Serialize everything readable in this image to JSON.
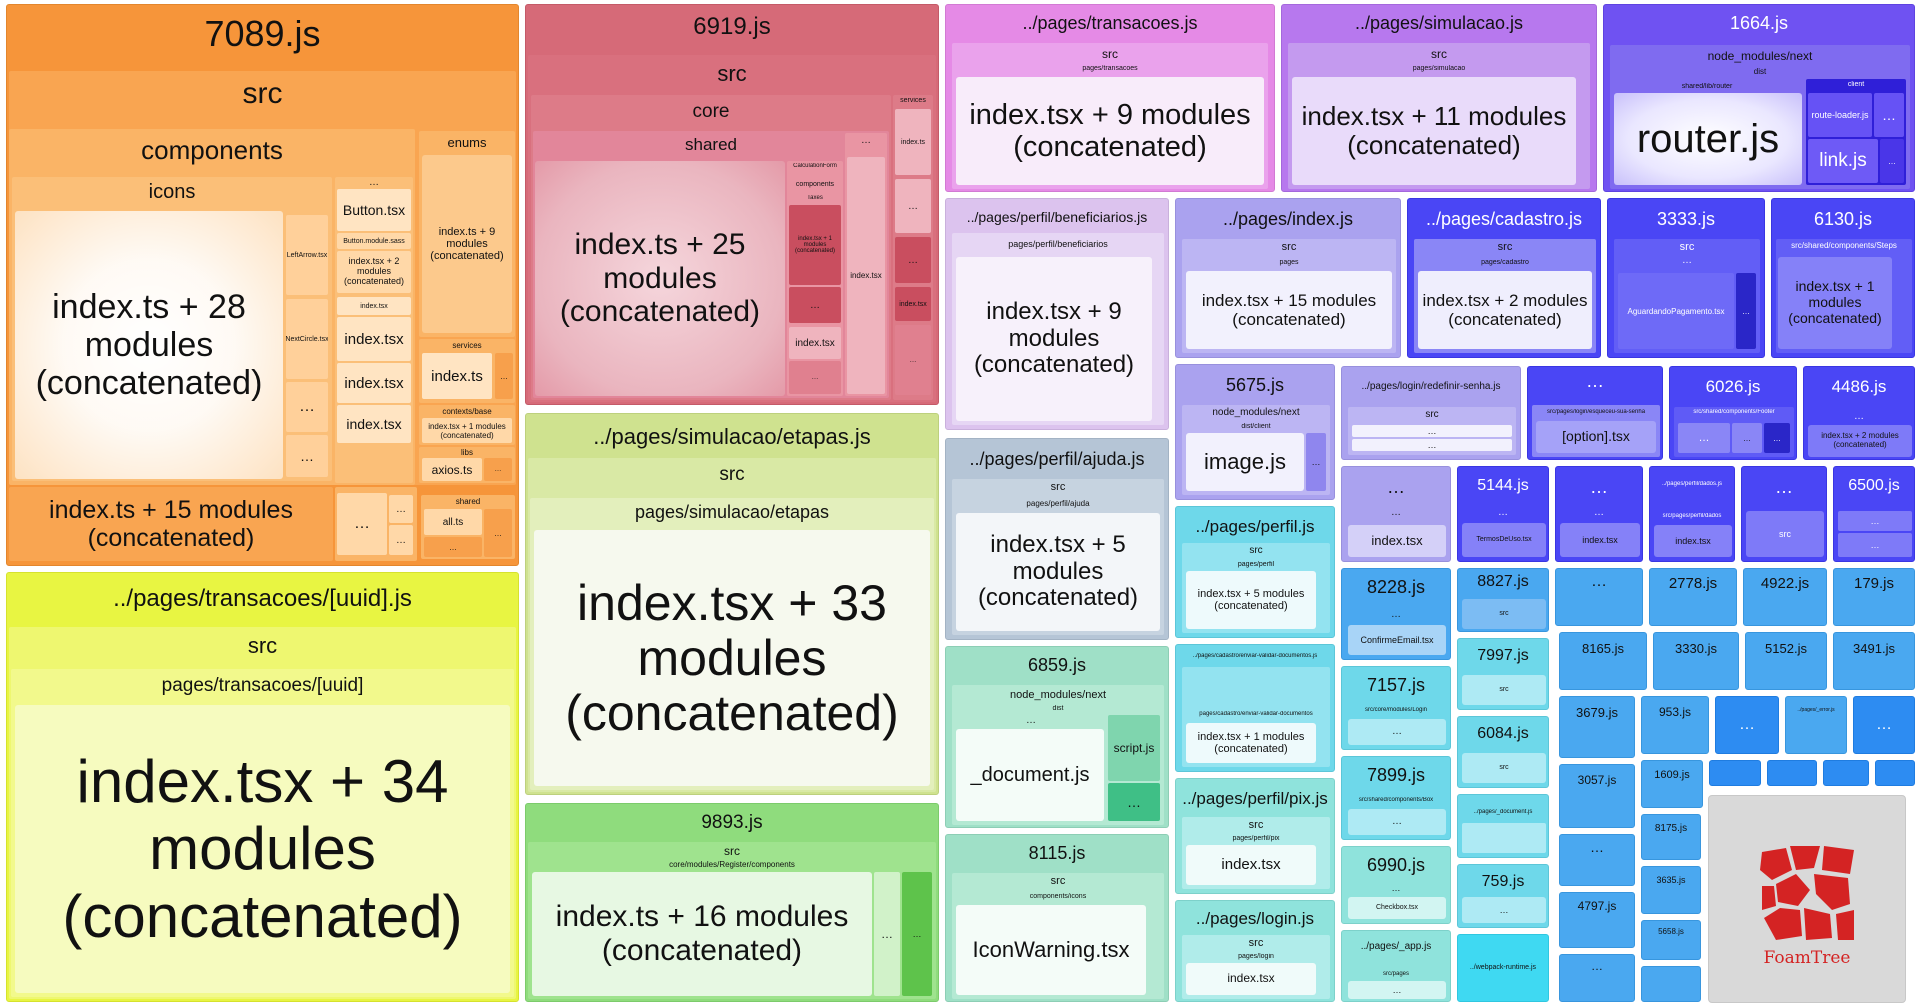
{
  "controls": {
    "sidebar_toggle_glyph": "›"
  },
  "colors": {
    "orange": "#f6953a",
    "yellow": "#e8f542",
    "rose": "#d66a78",
    "olive": "#cfe28f",
    "green": "#8fdc7d",
    "violet": "#b778ee",
    "blue": "#4a46f5",
    "cyan": "#6ed8ea",
    "azure": "#2d8cf2",
    "foamtree_red": "#d42323"
  },
  "chunks": {
    "c7089": {
      "title": "7089.js",
      "src": "src",
      "components": "components",
      "icons": "icons",
      "main": "index.ts + 28 modules (concatenated)",
      "leftarrow": "LeftArrow.tsx",
      "nextcircle": "NextCircle.tsx",
      "dots": "…",
      "button_tsx": "Button.tsx",
      "button_sass": "Button.module.sass",
      "concat2": "index.tsx + 2 modules (concatenated)",
      "index_tsx": "index.tsx",
      "enums": "enums",
      "enums_main": "index.ts + 9 modules (concatenated)",
      "services": "services",
      "index_ts": "index.ts",
      "contexts": "contexts/base",
      "concat1": "index.tsx + 1 modules (concatenated)",
      "libs": "libs",
      "axios": "axios.ts",
      "shared": "shared",
      "all": "all.ts",
      "bottom": "index.ts + 15 modules (concatenated)"
    },
    "c6919": {
      "title": "6919.js",
      "src": "src",
      "core": "core",
      "shared": "shared",
      "main": "index.ts + 25 modules (concatenated)",
      "calc": "CalculationForm",
      "components": "components",
      "taxes": "Taxes",
      "concat1": "index.tsx + 1 modules (concatenated)",
      "index_tsx": "index.tsx",
      "services": "services",
      "index_ts": "index.ts",
      "dots": "…"
    },
    "transUuid": {
      "title": "../pages/transacoes/[uuid].js",
      "src": "src",
      "path": "pages/transacoes/[uuid]",
      "main": "index.tsx + 34 modules (concatenated)"
    },
    "etapas": {
      "title": "../pages/simulacao/etapas.js",
      "src": "src",
      "path": "pages/simulacao/etapas",
      "main": "index.tsx + 33 modules (concatenated)"
    },
    "c9893": {
      "title": "9893.js",
      "src": "src",
      "path": "core/modules/Register/components",
      "main": "index.ts + 16 modules (concatenated)",
      "dots": "…"
    },
    "trans": {
      "title": "../pages/transacoes.js",
      "src": "src",
      "path": "pages/transacoes",
      "main": "index.tsx + 9 modules (concatenated)"
    },
    "simul": {
      "title": "../pages/simulacao.js",
      "src": "src",
      "path": "pages/simulacao",
      "main": "index.tsx + 11 modules (concatenated)"
    },
    "c1664": {
      "title": "1664.js",
      "nm": "node_modules/next",
      "dist": "dist",
      "shared": "shared/lib/router",
      "client": "client",
      "router": "router.js",
      "route_loader": "route-loader.js",
      "link": "link.js",
      "dots": "…"
    },
    "benef": {
      "title": "../pages/perfil/beneficiarios.js",
      "path": "pages/perfil/beneficiarios",
      "main": "index.tsx + 9 modules (concatenated)"
    },
    "pindex": {
      "title": "../pages/index.js",
      "src": "src",
      "path": "pages",
      "main": "index.tsx + 15 modules (concatenated)"
    },
    "cadastro": {
      "title": "../pages/cadastro.js",
      "src": "src",
      "path": "pages/cadastro",
      "main": "index.tsx + 2 modules (concatenated)"
    },
    "c3333": {
      "title": "3333.js",
      "src": "src",
      "dots": "…",
      "aguardando": "AguardandoPagamento.tsx"
    },
    "c6130": {
      "title": "6130.js",
      "path": "src/shared/components/Steps",
      "main": "index.tsx + 1 modules (concatenated)"
    },
    "ajuda": {
      "title": "../pages/perfil/ajuda.js",
      "src": "src",
      "path": "pages/perfil/ajuda",
      "main": "index.tsx + 5 modules (concatenated)"
    },
    "c6859": {
      "title": "6859.js",
      "nm": "node_modules/next",
      "dist": "dist",
      "dots": "…",
      "doc": "_document.js",
      "script": "script.js"
    },
    "c8115": {
      "title": "8115.js",
      "src": "src",
      "path": "components/icons",
      "main": "IconWarning.tsx"
    },
    "c5675": {
      "title": "5675.js",
      "nm": "node_modules/next",
      "dist": "dist/client",
      "main": "image.js",
      "dots": "…"
    },
    "perfil": {
      "title": "../pages/perfil.js",
      "src": "src",
      "path": "pages/perfil",
      "main": "index.tsx + 5 modules (concatenated)"
    },
    "envdoc": {
      "title": "../pages/cadastro/enviar-validar-documentos.js",
      "path": "pages/cadastro/enviar-validar-documentos",
      "main": "index.tsx + 1 modules (concatenated)"
    },
    "pix": {
      "title": "../pages/perfil/pix.js",
      "src": "src",
      "path": "pages/perfil/pix",
      "main": "index.tsx"
    },
    "login": {
      "title": "../pages/login.js",
      "src": "src",
      "path": "pages/login",
      "main": "index.tsx"
    },
    "redef": {
      "title": "../pages/login/redefinir-senha.js",
      "src": "src",
      "dots": "…"
    },
    "esq": {
      "title": "…",
      "path": "src/pages/login/esqueceu-sua-senha",
      "main": "[option].tsx"
    },
    "c6026": {
      "title": "6026.js",
      "path": "src/shared/components/Footer",
      "dots": "…"
    },
    "c4486": {
      "title": "4486.js",
      "dots": "…",
      "main": "index.tsx + 2 modules (concatenated)"
    },
    "r1": {
      "dots": "…",
      "index": "index.tsx"
    },
    "c5144": {
      "title": "5144.js",
      "dots": "…",
      "main": "TermosDeUso.tsx"
    },
    "r3": {
      "dots": "…",
      "index": "index.tsx"
    },
    "dados": {
      "title": "../pages/perfil/dados.js",
      "path": "src/pages/perfil/dados",
      "main": "index.tsx"
    },
    "r5": {
      "dots": "…",
      "src": "src"
    },
    "c6500": {
      "title": "6500.js",
      "dots": "…"
    },
    "c8228": {
      "title": "8228.js",
      "dots": "…",
      "main": "ConfirmeEmail.tsx"
    },
    "c8827": {
      "title": "8827.js",
      "src": "src"
    },
    "c7157": {
      "title": "7157.js",
      "path": "src/core/modules/Login",
      "dots": "…"
    },
    "c7997": {
      "title": "7997.js",
      "src": "src"
    },
    "c7899": {
      "title": "7899.js",
      "path": "src/shared/components/Box",
      "dots": "…"
    },
    "c6084": {
      "title": "6084.js",
      "src": "src"
    },
    "c6990": {
      "title": "6990.js",
      "dots": "…",
      "main": "Checkbox.tsx"
    },
    "pdoc": {
      "title": "../pages/_document.js"
    },
    "c759": {
      "title": "759.js",
      "dots": "…"
    },
    "app": {
      "title": "../pages/_app.js",
      "path": "src/pages",
      "dots": "…"
    },
    "runtime": {
      "title": "../webpack-runtime.js"
    },
    "smalls": {
      "c2778": "2778.js",
      "c4922": "4922.js",
      "c179": "179.js",
      "c8165": "8165.js",
      "c3330": "3330.js",
      "c5152": "5152.js",
      "c3491": "3491.js",
      "c3679": "3679.js",
      "c953": "953.js",
      "c3057": "3057.js",
      "c1609": "1609.js",
      "c8175": "8175.js",
      "c4797": "4797.js",
      "c3635": "3635.js",
      "c5658": "5658.js",
      "err": "../pages/_error.js",
      "dots": "…"
    }
  },
  "logo": {
    "text": "FoamTree"
  }
}
